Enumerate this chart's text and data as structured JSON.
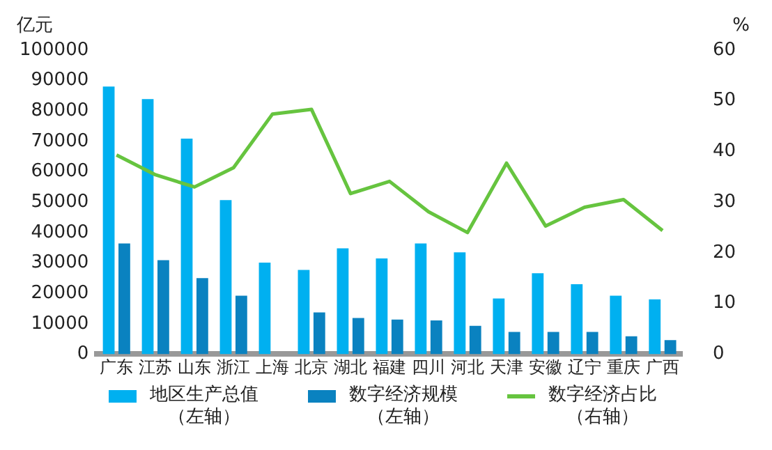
{
  "chart_data": {
    "type": "bar",
    "ylabel": "亿元",
    "y2label": "%",
    "categories": [
      "广东",
      "江苏",
      "山东",
      "浙江",
      "上海",
      "北京",
      "湖北",
      "福建",
      "四川",
      "河北",
      "天津",
      "安徽",
      "辽宁",
      "重庆",
      "广西"
    ],
    "series": [
      {
        "name": "地区生产总值（左轴）",
        "color": "#00b0f0",
        "values": [
          88000,
          83900,
          70900,
          50700,
          30100,
          27700,
          34800,
          31500,
          36400,
          33500,
          18300,
          26600,
          23000,
          19200,
          18000
        ]
      },
      {
        "name": "数字经济规模（左轴）",
        "color": "#0a82c0",
        "values": [
          36400,
          30900,
          25000,
          19200,
          null,
          13700,
          11900,
          11400,
          11100,
          9300,
          7300,
          7300,
          7300,
          5900,
          4600
        ]
      },
      {
        "name": "数字经济占比（右轴）",
        "type": "line",
        "axis": "y2",
        "color": "#66c43f",
        "values": [
          39.3,
          35.4,
          33,
          36.8,
          47.4,
          48.3,
          31.7,
          34.1,
          28.1,
          24,
          37.7,
          25.3,
          29,
          30.5,
          24.4
        ]
      }
    ],
    "ylim": [
      0,
      100000
    ],
    "yticks": [
      0,
      10000,
      20000,
      30000,
      40000,
      50000,
      60000,
      70000,
      80000,
      90000,
      100000
    ],
    "y2lim": [
      0,
      60
    ],
    "y2ticks": [
      0,
      10,
      20,
      30,
      40,
      50,
      60
    ],
    "grid": false,
    "legend": "bottom",
    "marker": "none",
    "line_style": "solid"
  }
}
